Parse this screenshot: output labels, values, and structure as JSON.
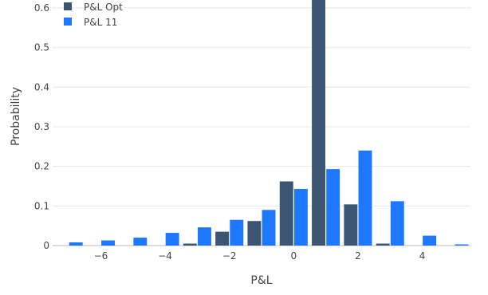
{
  "chart_data": {
    "type": "bar",
    "xlabel": "P&L",
    "ylabel": "Probability",
    "xlim": [
      -7.5,
      5.5
    ],
    "ylim": [
      0,
      0.62
    ],
    "x_ticks": [
      -6,
      -4,
      -2,
      0,
      2,
      4
    ],
    "x_tick_labels": [
      "−6",
      "−4",
      "−2",
      "0",
      "2",
      "4"
    ],
    "y_ticks": [
      0,
      0.1,
      0.2,
      0.3,
      0.4,
      0.5,
      0.6
    ],
    "y_tick_labels": [
      "0",
      "0.1",
      "0.2",
      "0.3",
      "0.4",
      "0.5",
      "0.6"
    ],
    "grid": true,
    "legend_position": "top-left",
    "series": [
      {
        "name": "P&L Opt",
        "color": "#3b5573",
        "points": [
          {
            "x": -3,
            "y": 0.005
          },
          {
            "x": -2,
            "y": 0.035
          },
          {
            "x": -1,
            "y": 0.062
          },
          {
            "x": 0,
            "y": 0.162
          },
          {
            "x": 1,
            "y": 0.62
          },
          {
            "x": 2,
            "y": 0.104
          },
          {
            "x": 3,
            "y": 0.005
          }
        ]
      },
      {
        "name": "P&L 11",
        "color": "#1e78ff",
        "points": [
          {
            "x": -7,
            "y": 0.008
          },
          {
            "x": -6,
            "y": 0.013
          },
          {
            "x": -5,
            "y": 0.02
          },
          {
            "x": -4,
            "y": 0.032
          },
          {
            "x": -3,
            "y": 0.046
          },
          {
            "x": -2,
            "y": 0.065
          },
          {
            "x": -1,
            "y": 0.09
          },
          {
            "x": 0,
            "y": 0.143
          },
          {
            "x": 1,
            "y": 0.193
          },
          {
            "x": 2,
            "y": 0.24
          },
          {
            "x": 3,
            "y": 0.112
          },
          {
            "x": 4,
            "y": 0.025
          },
          {
            "x": 5,
            "y": 0.003
          }
        ]
      }
    ]
  }
}
